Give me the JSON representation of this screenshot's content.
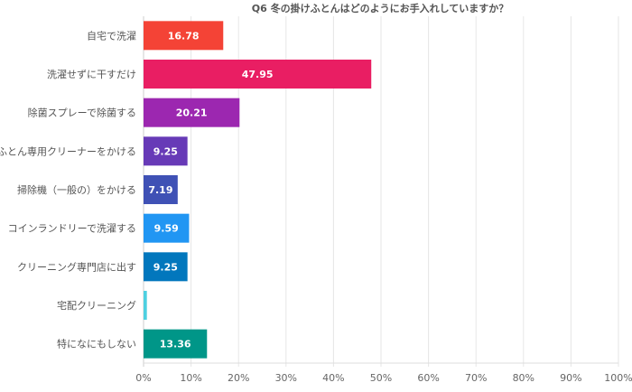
{
  "chart_data": {
    "type": "bar",
    "orientation": "horizontal",
    "title": "Q6 冬の掛けふとんはどのようにお手入れしていますか？",
    "categories": [
      "自宅で洗濯",
      "洗濯せずに干すだけ",
      "除菌スプレーで除菌する",
      "ふとん専用クリーナーをかける",
      "掃除機（一般の）をかける",
      "コインランドリーで洗濯する",
      "クリーニング専門店に出す",
      "宅配クリーニング",
      "特になにもしない"
    ],
    "values": [
      16.78,
      47.95,
      20.21,
      9.25,
      7.19,
      9.59,
      9.25,
      0.7,
      13.36
    ],
    "data_labels": [
      "16.78",
      "47.95",
      "20.21",
      "9.25",
      "7.19",
      "9.59",
      "9.25",
      "",
      "13.36"
    ],
    "colors": [
      "#f44336",
      "#e91e63",
      "#9c27b0",
      "#673ab7",
      "#3f51b5",
      "#2196f3",
      "#0277bd",
      "#4dd0e1",
      "#009688"
    ],
    "xlim": [
      0,
      100
    ],
    "x_ticks": [
      "0%",
      "10%",
      "20%",
      "30%",
      "40%",
      "50%",
      "60%",
      "70%",
      "80%",
      "90%",
      "100%"
    ],
    "grid": true,
    "xlabel": "",
    "ylabel": ""
  }
}
